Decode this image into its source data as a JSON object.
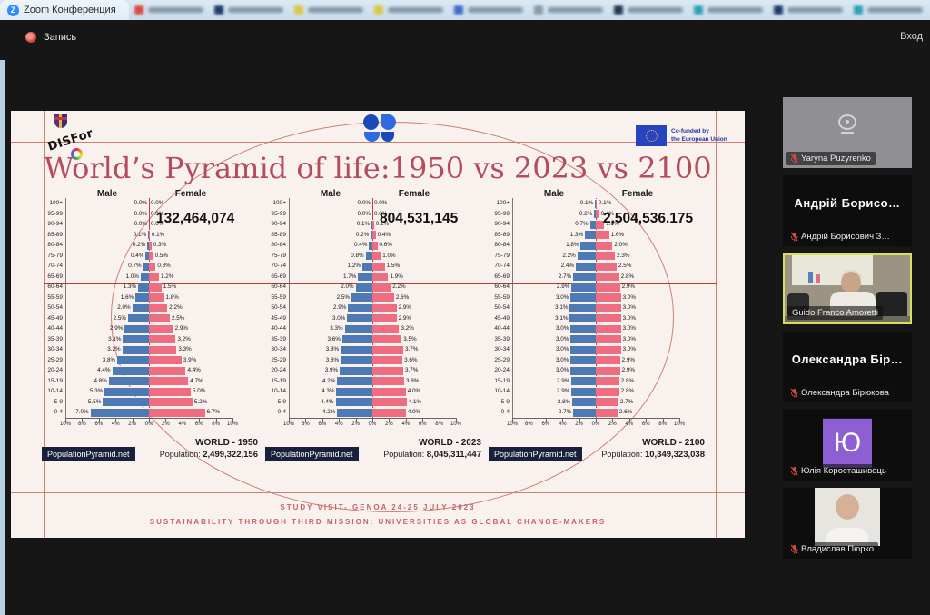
{
  "browser": {
    "active_tab_title": "Zoom Конференция",
    "blurred_tab_favicons": [
      "#d94a42",
      "#1f3a6b",
      "#d8c84a",
      "#d8c84a",
      "#3f69c5",
      "#8898a8",
      "#23364e",
      "#2c9fba",
      "#1f3a6b",
      "#2c9fba"
    ]
  },
  "meeting": {
    "recording_label": "Запись",
    "signin_label": "Вход"
  },
  "slide": {
    "title": "World’s Pyramid of life:1950 vs 2023 vs 2100",
    "disfor_label": "DISFor",
    "eu_label_line1": "Co-funded by",
    "eu_label_line2": "the European Union",
    "footer_line1": "STUDY VISIT- GENOA 24-25 JULY 2023",
    "footer_line2": "SUSTAINABILITY THROUGH THIRD MISSION: UNIVERSITIES AS GLOBAL CHANGE-MAKERS"
  },
  "chart_data": [
    {
      "type": "bar",
      "subtype": "population-pyramid",
      "title": "WORLD - 1950",
      "headline_value": "132,464,074",
      "population_prefix": "Population:",
      "population": "2,499,322,156",
      "male_label": "Male",
      "female_label": "Female",
      "source": "PopulationPyramid.net",
      "x_ticks": [
        "10%",
        "8%",
        "6%",
        "4%",
        "2%",
        "0%",
        "2%",
        "4%",
        "6%",
        "8%",
        "10%"
      ],
      "age_groups": [
        "100+",
        "95-99",
        "90-94",
        "85-89",
        "80-84",
        "75-79",
        "70-74",
        "65-69",
        "60-64",
        "55-59",
        "50-54",
        "45-49",
        "40-44",
        "35-39",
        "30-34",
        "25-29",
        "20-24",
        "15-19",
        "10-14",
        "5-9",
        "0-4"
      ],
      "male_pct": [
        0.0,
        0.0,
        0.0,
        0.1,
        0.2,
        0.4,
        0.7,
        1.0,
        1.3,
        1.6,
        2.0,
        2.5,
        2.9,
        3.1,
        3.2,
        3.8,
        4.4,
        4.8,
        5.3,
        5.5,
        7.0
      ],
      "female_pct": [
        0.0,
        0.0,
        0.0,
        0.1,
        0.3,
        0.5,
        0.8,
        1.2,
        1.5,
        1.8,
        2.2,
        2.5,
        2.9,
        3.2,
        3.3,
        3.9,
        4.4,
        4.7,
        5.0,
        5.2,
        6.7
      ]
    },
    {
      "type": "bar",
      "subtype": "population-pyramid",
      "title": "WORLD - 2023",
      "headline_value": "804,531,145",
      "population_prefix": "Population:",
      "population": "8,045,311,447",
      "male_label": "Male",
      "female_label": "Female",
      "source": "PopulationPyramid.net",
      "x_ticks": [
        "10%",
        "8%",
        "6%",
        "4%",
        "2%",
        "0%",
        "2%",
        "4%",
        "6%",
        "8%",
        "10%"
      ],
      "age_groups": [
        "100+",
        "95-99",
        "90-94",
        "85-89",
        "80-84",
        "75-79",
        "70-74",
        "65-69",
        "60-64",
        "55-59",
        "50-54",
        "45-49",
        "40-44",
        "35-39",
        "30-34",
        "25-29",
        "20-24",
        "15-19",
        "10-14",
        "5-9",
        "0-4"
      ],
      "male_pct": [
        0.0,
        0.0,
        0.1,
        0.2,
        0.4,
        0.8,
        1.2,
        1.7,
        2.0,
        2.5,
        2.9,
        3.0,
        3.3,
        3.6,
        3.8,
        3.8,
        3.9,
        4.2,
        4.3,
        4.4,
        4.2
      ],
      "female_pct": [
        0.0,
        0.0,
        0.2,
        0.4,
        0.6,
        1.0,
        1.5,
        1.9,
        2.2,
        2.6,
        2.9,
        2.9,
        3.2,
        3.5,
        3.7,
        3.6,
        3.7,
        3.8,
        4.0,
        4.1,
        4.0
      ]
    },
    {
      "type": "bar",
      "subtype": "population-pyramid",
      "title": "WORLD - 2100",
      "headline_value": "2,504,536.175",
      "population_prefix": "Population:",
      "population": "10,349,323,038",
      "male_label": "Male",
      "female_label": "Female",
      "source": "PopulationPyramid.net",
      "x_ticks": [
        "10%",
        "8%",
        "6%",
        "4%",
        "2%",
        "0%",
        "2%",
        "4%",
        "6%",
        "8%",
        "10%"
      ],
      "age_groups": [
        "100+",
        "95-99",
        "90-94",
        "85-89",
        "80-84",
        "75-79",
        "70-74",
        "65-69",
        "60-64",
        "55-59",
        "50-54",
        "45-49",
        "40-44",
        "35-39",
        "30-34",
        "25-29",
        "20-24",
        "15-19",
        "10-14",
        "5-9",
        "0-4"
      ],
      "male_pct": [
        0.1,
        0.2,
        0.7,
        1.3,
        1.8,
        2.2,
        2.4,
        2.7,
        2.9,
        3.0,
        3.1,
        3.1,
        3.0,
        3.0,
        3.0,
        3.0,
        3.0,
        2.9,
        2.9,
        2.8,
        2.7
      ],
      "female_pct": [
        0.1,
        0.4,
        1.0,
        1.6,
        2.0,
        2.3,
        2.5,
        2.8,
        2.9,
        3.0,
        3.0,
        3.0,
        3.0,
        3.0,
        3.0,
        2.9,
        2.9,
        2.8,
        2.8,
        2.7,
        2.6
      ]
    }
  ],
  "participants": [
    {
      "name": "Yaryna Puzyrenko",
      "muted": true,
      "tile": "camera-off"
    },
    {
      "display_name": "Андрій Борисо…",
      "name": "Андрій Борисович З…",
      "muted": true,
      "tile": "name"
    },
    {
      "name": "Guido Franco Amoretti",
      "muted": false,
      "tile": "video",
      "active_speaker": true
    },
    {
      "display_name": "Олександра Бір…",
      "name": "Олександра Бірюкова",
      "muted": true,
      "tile": "name"
    },
    {
      "name": "Юлія Коросташивець",
      "muted": true,
      "tile": "letter-avatar",
      "avatar_letter": "Ю",
      "avatar_color": "#8e5fd3"
    },
    {
      "name": "Владислав Пюрко",
      "muted": true,
      "tile": "photo-avatar"
    }
  ]
}
